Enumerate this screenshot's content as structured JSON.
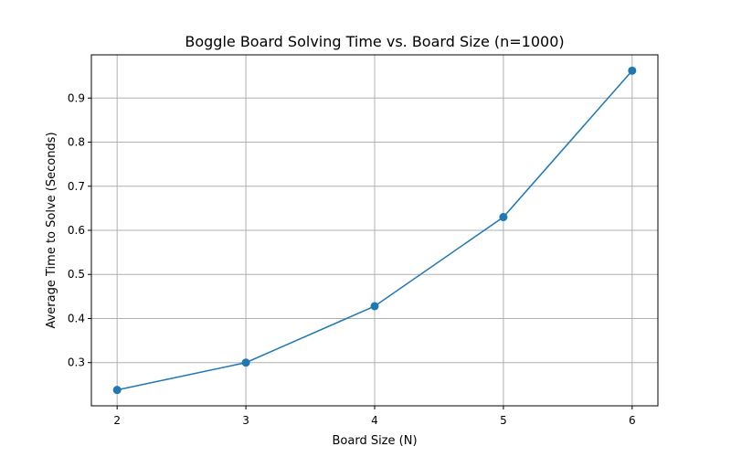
{
  "chart_data": {
    "type": "line",
    "title": "Boggle Board Solving Time vs. Board Size (n=1000)",
    "xlabel": "Board Size (N)",
    "ylabel": "Average Time to Solve (Seconds)",
    "x": [
      2,
      3,
      4,
      5,
      6
    ],
    "series": [
      {
        "values": [
          0.238,
          0.3,
          0.428,
          0.63,
          0.962
        ]
      }
    ],
    "xticks": [
      2,
      3,
      4,
      5,
      6
    ],
    "yticks": [
      0.3,
      0.4,
      0.5,
      0.6,
      0.7,
      0.8,
      0.9
    ],
    "xlim": [
      1.8,
      6.2
    ],
    "ylim": [
      0.202,
      0.998
    ],
    "grid": true,
    "line_color": "#1f77b4",
    "marker": "circle"
  }
}
